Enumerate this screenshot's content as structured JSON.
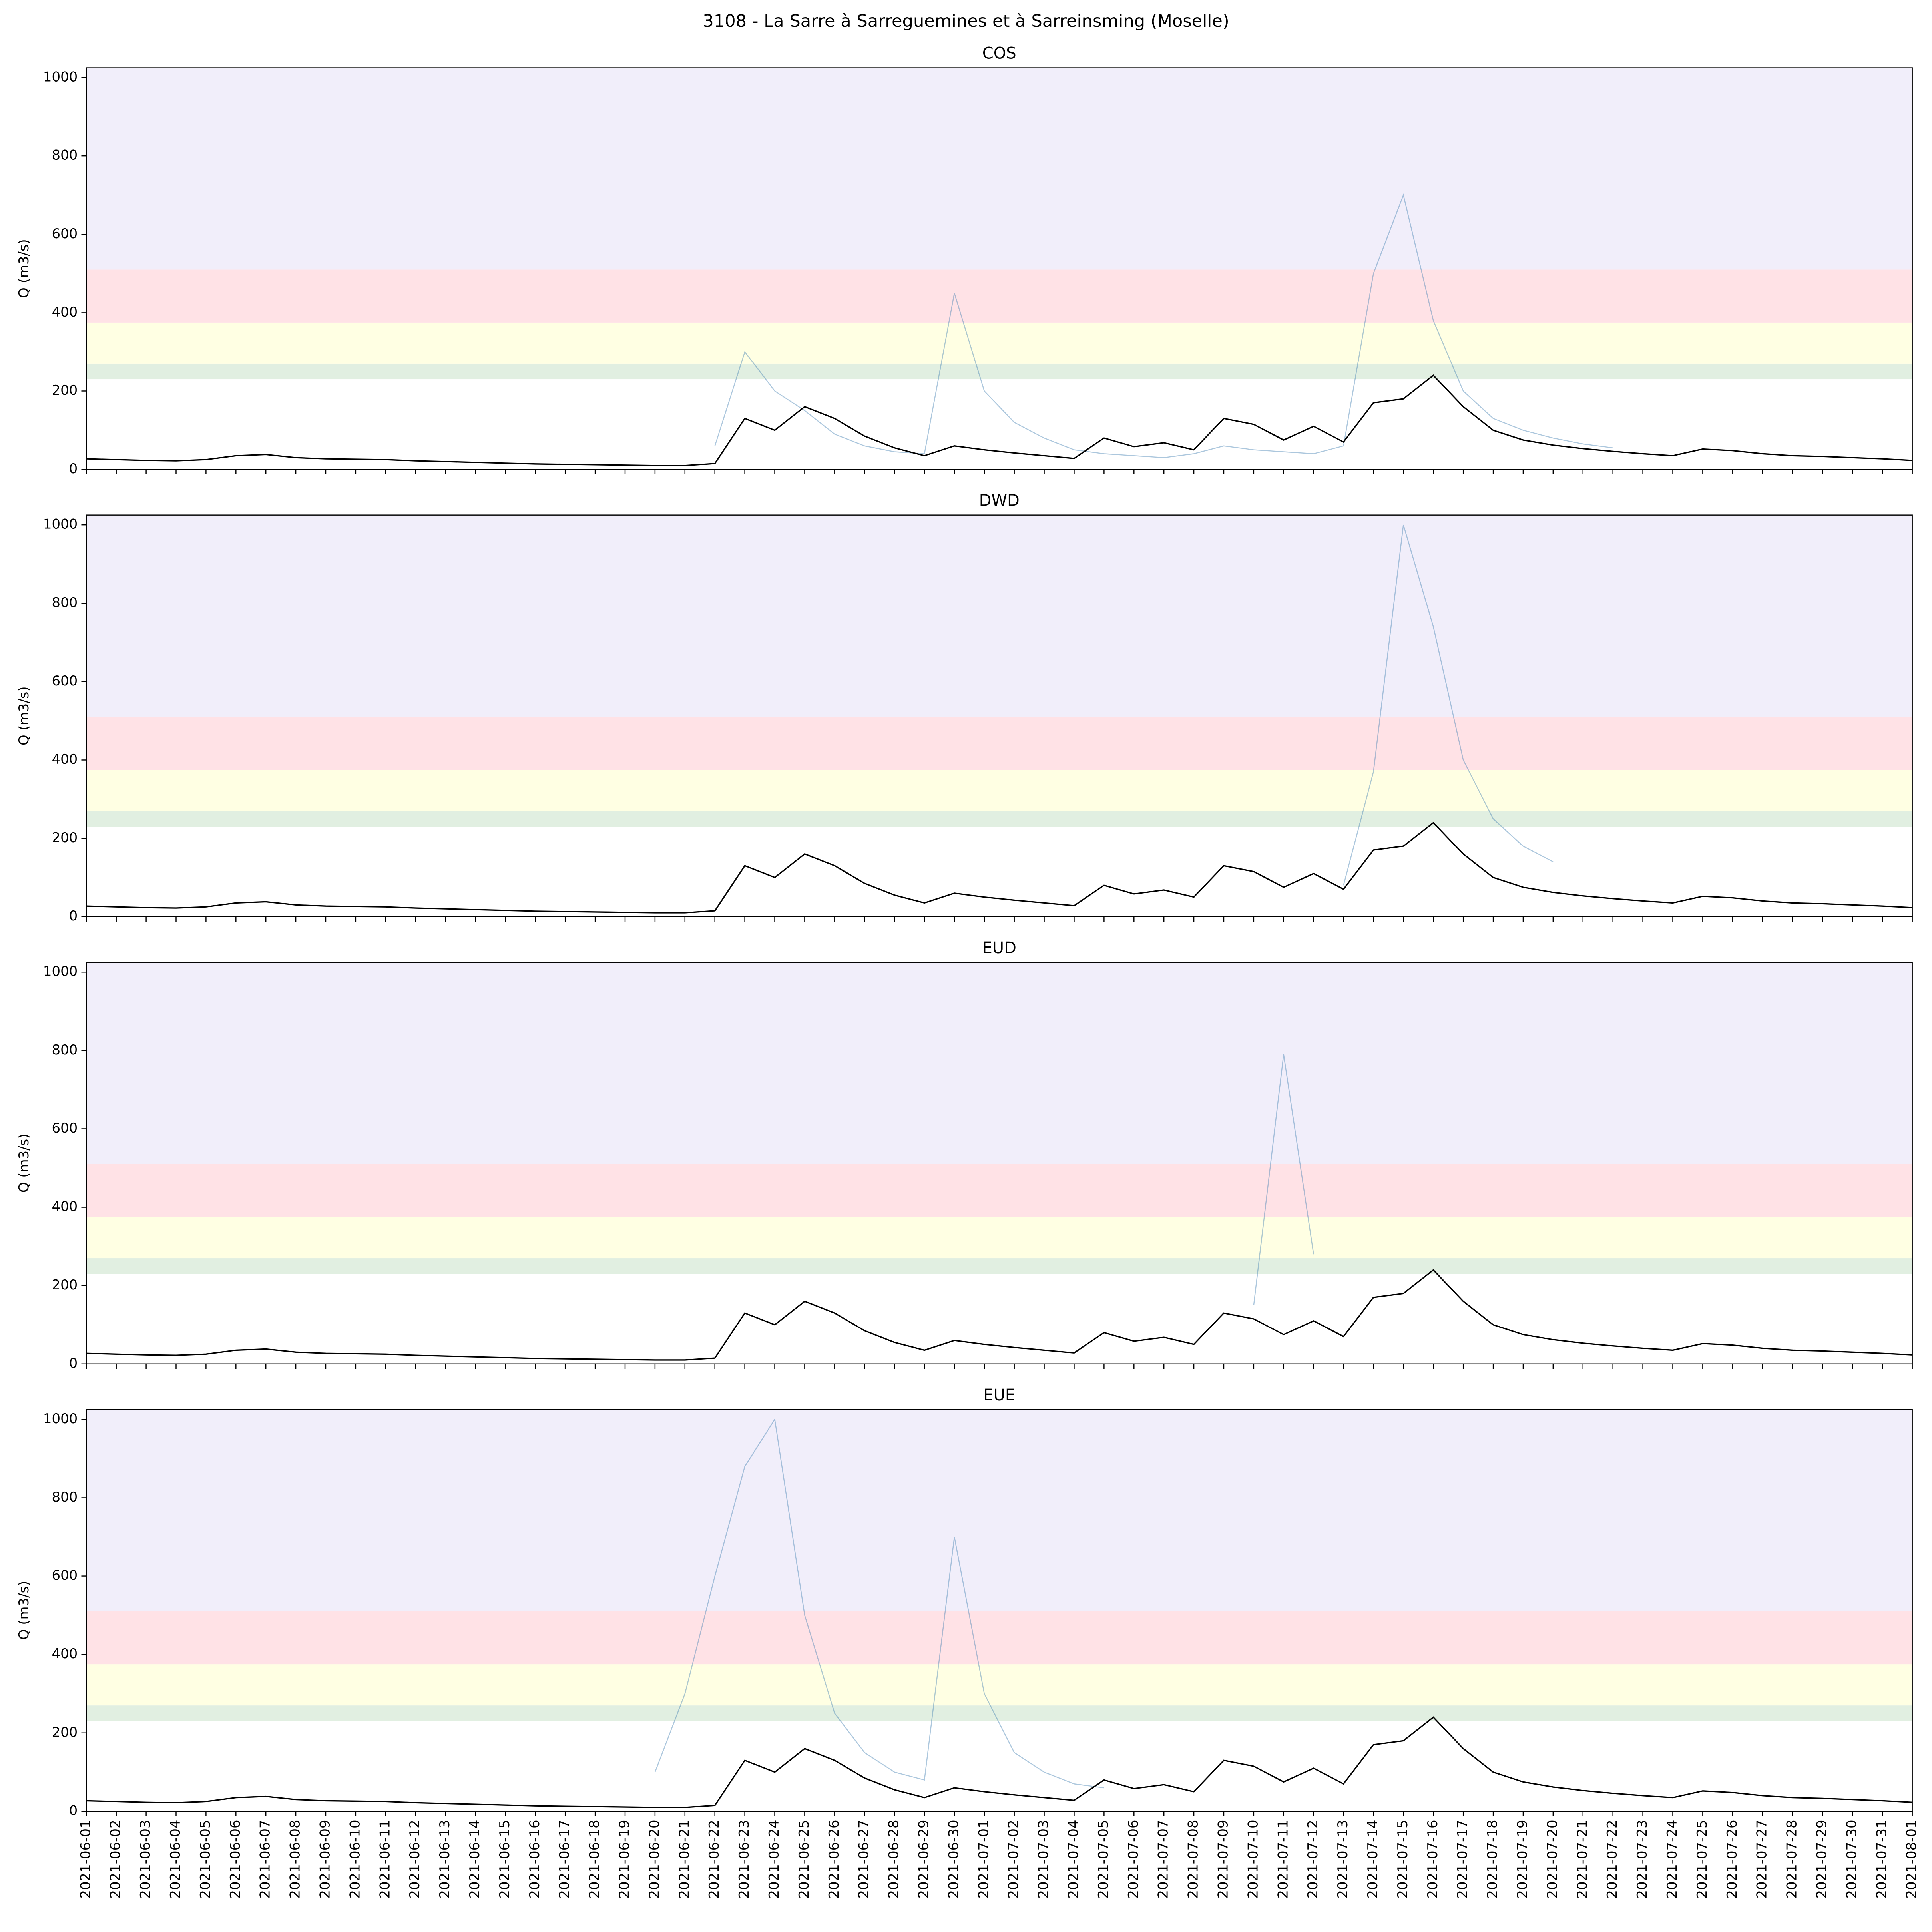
{
  "title": "3108 - La Sarre à Sarreguemines et à Sarreinsming (Moselle)",
  "chart_data": [
    {
      "type": "line",
      "title": "COS",
      "y_label": "Q (m3/s)",
      "x": [
        "2021-06-01",
        "2021-06-02",
        "2021-06-03",
        "2021-06-04",
        "2021-06-05",
        "2021-06-06",
        "2021-06-07",
        "2021-06-08",
        "2021-06-09",
        "2021-06-10",
        "2021-06-11",
        "2021-06-12",
        "2021-06-13",
        "2021-06-14",
        "2021-06-15",
        "2021-06-16",
        "2021-06-17",
        "2021-06-18",
        "2021-06-19",
        "2021-06-20",
        "2021-06-21",
        "2021-06-22",
        "2021-06-23",
        "2021-06-24",
        "2021-06-25",
        "2021-06-26",
        "2021-06-27",
        "2021-06-28",
        "2021-06-29",
        "2021-06-30",
        "2021-07-01",
        "2021-07-02",
        "2021-07-03",
        "2021-07-04",
        "2021-07-05",
        "2021-07-06",
        "2021-07-07",
        "2021-07-08",
        "2021-07-09",
        "2021-07-10",
        "2021-07-11",
        "2021-07-12",
        "2021-07-13",
        "2021-07-14",
        "2021-07-15",
        "2021-07-16",
        "2021-07-17",
        "2021-07-18",
        "2021-07-19",
        "2021-07-20",
        "2021-07-21",
        "2021-07-22",
        "2021-07-23",
        "2021-07-24",
        "2021-07-25",
        "2021-07-26",
        "2021-07-27",
        "2021-07-28",
        "2021-07-29",
        "2021-07-30",
        "2021-07-31",
        "2021-08-01"
      ],
      "ylim": [
        0,
        1025
      ],
      "yticks": [
        0,
        200,
        400,
        600,
        800,
        1000
      ],
      "bands": [
        {
          "from": 230,
          "to": 270,
          "color": "#e1efe1"
        },
        {
          "from": 270,
          "to": 375,
          "color": "#ffffe3"
        },
        {
          "from": 375,
          "to": 510,
          "color": "#ffe2e6"
        },
        {
          "from": 510,
          "to": 1025,
          "color": "#f1eefa"
        }
      ],
      "series": [
        {
          "color": "#4682b4",
          "values": [
            null,
            null,
            null,
            null,
            null,
            null,
            null,
            null,
            null,
            null,
            null,
            null,
            null,
            null,
            null,
            null,
            null,
            null,
            null,
            null,
            null,
            60,
            300,
            200,
            150,
            90,
            60,
            45,
            40,
            450,
            200,
            120,
            80,
            50,
            40,
            35,
            30,
            40,
            60,
            50,
            45,
            40,
            60,
            500,
            700,
            380,
            200,
            130,
            100,
            80,
            65,
            55,
            null,
            null,
            null,
            null,
            null,
            null,
            null,
            null,
            null,
            null
          ]
        },
        {
          "color": "#000000",
          "values": [
            27,
            25,
            23,
            22,
            25,
            35,
            38,
            30,
            27,
            26,
            25,
            22,
            20,
            18,
            16,
            14,
            13,
            12,
            11,
            10,
            10,
            15,
            130,
            100,
            160,
            130,
            85,
            55,
            35,
            60,
            50,
            42,
            35,
            28,
            80,
            58,
            68,
            50,
            130,
            115,
            75,
            110,
            70,
            170,
            180,
            240,
            160,
            100,
            75,
            62,
            53,
            46,
            40,
            35,
            52,
            48,
            40,
            35,
            33,
            30,
            27,
            23
          ]
        }
      ]
    },
    {
      "type": "line",
      "title": "DWD",
      "y_label": "Q (m3/s)",
      "x": [
        "2021-06-01",
        "2021-06-02",
        "2021-06-03",
        "2021-06-04",
        "2021-06-05",
        "2021-06-06",
        "2021-06-07",
        "2021-06-08",
        "2021-06-09",
        "2021-06-10",
        "2021-06-11",
        "2021-06-12",
        "2021-06-13",
        "2021-06-14",
        "2021-06-15",
        "2021-06-16",
        "2021-06-17",
        "2021-06-18",
        "2021-06-19",
        "2021-06-20",
        "2021-06-21",
        "2021-06-22",
        "2021-06-23",
        "2021-06-24",
        "2021-06-25",
        "2021-06-26",
        "2021-06-27",
        "2021-06-28",
        "2021-06-29",
        "2021-06-30",
        "2021-07-01",
        "2021-07-02",
        "2021-07-03",
        "2021-07-04",
        "2021-07-05",
        "2021-07-06",
        "2021-07-07",
        "2021-07-08",
        "2021-07-09",
        "2021-07-10",
        "2021-07-11",
        "2021-07-12",
        "2021-07-13",
        "2021-07-14",
        "2021-07-15",
        "2021-07-16",
        "2021-07-17",
        "2021-07-18",
        "2021-07-19",
        "2021-07-20",
        "2021-07-21",
        "2021-07-22",
        "2021-07-23",
        "2021-07-24",
        "2021-07-25",
        "2021-07-26",
        "2021-07-27",
        "2021-07-28",
        "2021-07-29",
        "2021-07-30",
        "2021-07-31",
        "2021-08-01"
      ],
      "ylim": [
        0,
        1025
      ],
      "yticks": [
        0,
        200,
        400,
        600,
        800,
        1000
      ],
      "bands": [
        {
          "from": 230,
          "to": 270,
          "color": "#e1efe1"
        },
        {
          "from": 270,
          "to": 375,
          "color": "#ffffe3"
        },
        {
          "from": 375,
          "to": 510,
          "color": "#ffe2e6"
        },
        {
          "from": 510,
          "to": 1025,
          "color": "#f1eefa"
        }
      ],
      "series": [
        {
          "color": "#4682b4",
          "values": [
            null,
            null,
            null,
            null,
            null,
            null,
            null,
            null,
            null,
            null,
            null,
            null,
            null,
            null,
            null,
            null,
            null,
            null,
            null,
            null,
            null,
            null,
            null,
            null,
            null,
            null,
            null,
            null,
            null,
            null,
            null,
            null,
            null,
            null,
            null,
            null,
            null,
            null,
            null,
            null,
            null,
            null,
            80,
            370,
            1000,
            740,
            400,
            250,
            180,
            140,
            null,
            null,
            null,
            null,
            null,
            null,
            null,
            null,
            null,
            null,
            null,
            null
          ]
        },
        {
          "color": "#000000",
          "values": [
            27,
            25,
            23,
            22,
            25,
            35,
            38,
            30,
            27,
            26,
            25,
            22,
            20,
            18,
            16,
            14,
            13,
            12,
            11,
            10,
            10,
            15,
            130,
            100,
            160,
            130,
            85,
            55,
            35,
            60,
            50,
            42,
            35,
            28,
            80,
            58,
            68,
            50,
            130,
            115,
            75,
            110,
            70,
            170,
            180,
            240,
            160,
            100,
            75,
            62,
            53,
            46,
            40,
            35,
            52,
            48,
            40,
            35,
            33,
            30,
            27,
            23
          ]
        }
      ]
    },
    {
      "type": "line",
      "title": "EUD",
      "y_label": "Q (m3/s)",
      "x": [
        "2021-06-01",
        "2021-06-02",
        "2021-06-03",
        "2021-06-04",
        "2021-06-05",
        "2021-06-06",
        "2021-06-07",
        "2021-06-08",
        "2021-06-09",
        "2021-06-10",
        "2021-06-11",
        "2021-06-12",
        "2021-06-13",
        "2021-06-14",
        "2021-06-15",
        "2021-06-16",
        "2021-06-17",
        "2021-06-18",
        "2021-06-19",
        "2021-06-20",
        "2021-06-21",
        "2021-06-22",
        "2021-06-23",
        "2021-06-24",
        "2021-06-25",
        "2021-06-26",
        "2021-06-27",
        "2021-06-28",
        "2021-06-29",
        "2021-06-30",
        "2021-07-01",
        "2021-07-02",
        "2021-07-03",
        "2021-07-04",
        "2021-07-05",
        "2021-07-06",
        "2021-07-07",
        "2021-07-08",
        "2021-07-09",
        "2021-07-10",
        "2021-07-11",
        "2021-07-12",
        "2021-07-13",
        "2021-07-14",
        "2021-07-15",
        "2021-07-16",
        "2021-07-17",
        "2021-07-18",
        "2021-07-19",
        "2021-07-20",
        "2021-07-21",
        "2021-07-22",
        "2021-07-23",
        "2021-07-24",
        "2021-07-25",
        "2021-07-26",
        "2021-07-27",
        "2021-07-28",
        "2021-07-29",
        "2021-07-30",
        "2021-07-31",
        "2021-08-01"
      ],
      "ylim": [
        0,
        1025
      ],
      "yticks": [
        0,
        200,
        400,
        600,
        800,
        1000
      ],
      "bands": [
        {
          "from": 230,
          "to": 270,
          "color": "#e1efe1"
        },
        {
          "from": 270,
          "to": 375,
          "color": "#ffffe3"
        },
        {
          "from": 375,
          "to": 510,
          "color": "#ffe2e6"
        },
        {
          "from": 510,
          "to": 1025,
          "color": "#f1eefa"
        }
      ],
      "series": [
        {
          "color": "#4682b4",
          "values": [
            null,
            null,
            null,
            null,
            null,
            null,
            null,
            null,
            null,
            null,
            null,
            null,
            null,
            null,
            null,
            null,
            null,
            null,
            null,
            null,
            null,
            null,
            null,
            null,
            null,
            null,
            null,
            null,
            null,
            null,
            null,
            null,
            null,
            null,
            null,
            null,
            null,
            null,
            null,
            150,
            790,
            280,
            null,
            null,
            null,
            null,
            null,
            null,
            null,
            null,
            null,
            null,
            null,
            null,
            null,
            null,
            null,
            null,
            null,
            null,
            null,
            null
          ]
        },
        {
          "color": "#000000",
          "values": [
            27,
            25,
            23,
            22,
            25,
            35,
            38,
            30,
            27,
            26,
            25,
            22,
            20,
            18,
            16,
            14,
            13,
            12,
            11,
            10,
            10,
            15,
            130,
            100,
            160,
            130,
            85,
            55,
            35,
            60,
            50,
            42,
            35,
            28,
            80,
            58,
            68,
            50,
            130,
            115,
            75,
            110,
            70,
            170,
            180,
            240,
            160,
            100,
            75,
            62,
            53,
            46,
            40,
            35,
            52,
            48,
            40,
            35,
            33,
            30,
            27,
            23
          ]
        }
      ]
    },
    {
      "type": "line",
      "title": "EUE",
      "y_label": "Q (m3/s)",
      "x": [
        "2021-06-01",
        "2021-06-02",
        "2021-06-03",
        "2021-06-04",
        "2021-06-05",
        "2021-06-06",
        "2021-06-07",
        "2021-06-08",
        "2021-06-09",
        "2021-06-10",
        "2021-06-11",
        "2021-06-12",
        "2021-06-13",
        "2021-06-14",
        "2021-06-15",
        "2021-06-16",
        "2021-06-17",
        "2021-06-18",
        "2021-06-19",
        "2021-06-20",
        "2021-06-21",
        "2021-06-22",
        "2021-06-23",
        "2021-06-24",
        "2021-06-25",
        "2021-06-26",
        "2021-06-27",
        "2021-06-28",
        "2021-06-29",
        "2021-06-30",
        "2021-07-01",
        "2021-07-02",
        "2021-07-03",
        "2021-07-04",
        "2021-07-05",
        "2021-07-06",
        "2021-07-07",
        "2021-07-08",
        "2021-07-09",
        "2021-07-10",
        "2021-07-11",
        "2021-07-12",
        "2021-07-13",
        "2021-07-14",
        "2021-07-15",
        "2021-07-16",
        "2021-07-17",
        "2021-07-18",
        "2021-07-19",
        "2021-07-20",
        "2021-07-21",
        "2021-07-22",
        "2021-07-23",
        "2021-07-24",
        "2021-07-25",
        "2021-07-26",
        "2021-07-27",
        "2021-07-28",
        "2021-07-29",
        "2021-07-30",
        "2021-07-31",
        "2021-08-01"
      ],
      "ylim": [
        0,
        1025
      ],
      "yticks": [
        0,
        200,
        400,
        600,
        800,
        1000
      ],
      "bands": [
        {
          "from": 230,
          "to": 270,
          "color": "#e1efe1"
        },
        {
          "from": 270,
          "to": 375,
          "color": "#ffffe3"
        },
        {
          "from": 375,
          "to": 510,
          "color": "#ffe2e6"
        },
        {
          "from": 510,
          "to": 1025,
          "color": "#f1eefa"
        }
      ],
      "series": [
        {
          "color": "#4682b4",
          "values": [
            null,
            null,
            null,
            null,
            null,
            null,
            null,
            null,
            null,
            null,
            null,
            null,
            null,
            null,
            null,
            null,
            null,
            null,
            null,
            100,
            300,
            600,
            880,
            1000,
            500,
            250,
            150,
            100,
            80,
            700,
            300,
            150,
            100,
            70,
            60,
            null,
            null,
            null,
            null,
            null,
            null,
            null,
            null,
            null,
            null,
            null,
            null,
            null,
            null,
            null,
            null,
            null,
            null,
            null,
            null,
            null,
            null,
            null,
            null,
            null,
            null,
            null
          ]
        },
        {
          "color": "#000000",
          "values": [
            27,
            25,
            23,
            22,
            25,
            35,
            38,
            30,
            27,
            26,
            25,
            22,
            20,
            18,
            16,
            14,
            13,
            12,
            11,
            10,
            10,
            15,
            130,
            100,
            160,
            130,
            85,
            55,
            35,
            60,
            50,
            42,
            35,
            28,
            80,
            58,
            68,
            50,
            130,
            115,
            75,
            110,
            70,
            170,
            180,
            240,
            160,
            100,
            75,
            62,
            53,
            46,
            40,
            35,
            52,
            48,
            40,
            35,
            33,
            30,
            27,
            23
          ]
        }
      ]
    }
  ]
}
